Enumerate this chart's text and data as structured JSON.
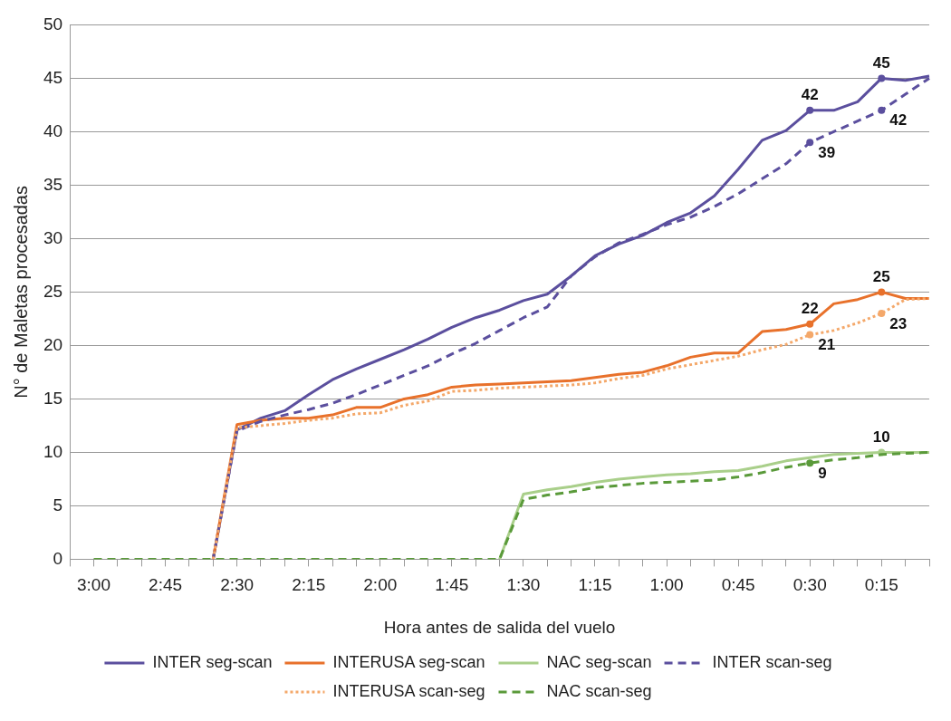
{
  "chart_data": {
    "type": "line",
    "xlabel": "Hora antes de salida del vuelo",
    "ylabel": "N° de Maletas procesadas",
    "categories": [
      null,
      "3:00",
      null,
      null,
      "2:45",
      null,
      null,
      "2:30",
      null,
      null,
      "2:15",
      null,
      null,
      "2:00",
      null,
      null,
      "1:45",
      null,
      null,
      "1:30",
      null,
      null,
      "1:15",
      null,
      null,
      "1:00",
      null,
      null,
      "0:45",
      null,
      null,
      "0:30",
      null,
      null,
      "0:15",
      null,
      null
    ],
    "ylim": [
      0,
      50
    ],
    "yticks": [
      0,
      5,
      10,
      15,
      20,
      25,
      30,
      35,
      40,
      45,
      50
    ],
    "grid": "y",
    "legend": "bottom",
    "series": [
      {
        "name": "INTER seg-scan",
        "color": "#5b4f9e",
        "line_style": "solid",
        "values": [
          null,
          null,
          null,
          null,
          null,
          null,
          0,
          12.1,
          13.2,
          13.9,
          15.4,
          16.8,
          17.8,
          18.7,
          19.6,
          20.6,
          21.7,
          22.6,
          23.3,
          24.2,
          24.8,
          26.5,
          28.4,
          29.5,
          30.3,
          31.5,
          32.4,
          34,
          36.5,
          39.2,
          40.1,
          42,
          42,
          42.8,
          45,
          44.8,
          45.2
        ],
        "value_labels": [
          null,
          null,
          null,
          null,
          null,
          null,
          null,
          null,
          null,
          null,
          null,
          null,
          null,
          null,
          null,
          null,
          null,
          null,
          null,
          null,
          null,
          null,
          null,
          null,
          null,
          null,
          null,
          null,
          null,
          null,
          null,
          "42",
          null,
          null,
          "45",
          null,
          null
        ]
      },
      {
        "name": "INTERUSA seg-scan",
        "color": "#e8712b",
        "line_style": "solid",
        "values": [
          null,
          null,
          null,
          null,
          null,
          null,
          0,
          12.6,
          13,
          13.2,
          13.2,
          13.5,
          14.2,
          14.2,
          15,
          15.4,
          16.1,
          16.3,
          16.4,
          16.5,
          16.6,
          16.7,
          17,
          17.3,
          17.5,
          18.1,
          18.9,
          19.3,
          19.3,
          21.3,
          21.5,
          22,
          23.9,
          24.3,
          25,
          24.4,
          24.4
        ],
        "value_labels": [
          null,
          null,
          null,
          null,
          null,
          null,
          null,
          null,
          null,
          null,
          null,
          null,
          null,
          null,
          null,
          null,
          null,
          null,
          null,
          null,
          null,
          null,
          null,
          null,
          null,
          null,
          null,
          null,
          null,
          null,
          null,
          "22",
          null,
          null,
          "25",
          null,
          null
        ]
      },
      {
        "name": "NAC seg-scan",
        "color": "#a9cf8a",
        "line_style": "solid",
        "values": [
          null,
          null,
          null,
          null,
          null,
          null,
          null,
          null,
          null,
          null,
          null,
          null,
          null,
          null,
          null,
          null,
          null,
          null,
          0,
          6.1,
          6.5,
          6.8,
          7.2,
          7.5,
          7.7,
          7.9,
          8,
          8.2,
          8.3,
          8.7,
          9.2,
          9.5,
          9.8,
          9.9,
          10,
          10,
          10
        ],
        "value_labels": [
          null,
          null,
          null,
          null,
          null,
          null,
          null,
          null,
          null,
          null,
          null,
          null,
          null,
          null,
          null,
          null,
          null,
          null,
          null,
          null,
          null,
          null,
          null,
          null,
          null,
          null,
          null,
          null,
          null,
          null,
          null,
          null,
          null,
          null,
          "10",
          null,
          null
        ]
      },
      {
        "name": "INTER scan-seg",
        "color": "#5b4f9e",
        "line_style": "dashed",
        "values": [
          null,
          null,
          null,
          null,
          null,
          null,
          0,
          12,
          12.9,
          13.5,
          14,
          14.6,
          15.4,
          16.3,
          17.2,
          18.1,
          19.2,
          20.2,
          21.4,
          22.6,
          23.6,
          26.5,
          28.3,
          29.6,
          30.4,
          31.3,
          32,
          33,
          34.2,
          35.6,
          37,
          39,
          40,
          41,
          42,
          43.5,
          45
        ],
        "value_labels": [
          null,
          null,
          null,
          null,
          null,
          null,
          null,
          null,
          null,
          null,
          null,
          null,
          null,
          null,
          null,
          null,
          null,
          null,
          null,
          null,
          null,
          null,
          null,
          null,
          null,
          null,
          null,
          null,
          null,
          null,
          null,
          "39",
          null,
          null,
          "42",
          null,
          null
        ]
      },
      {
        "name": "INTERUSA scan-seg",
        "color": "#f4a86a",
        "line_style": "dotted",
        "values": [
          null,
          null,
          null,
          null,
          null,
          null,
          0,
          12.3,
          12.5,
          12.7,
          13,
          13.2,
          13.6,
          13.7,
          14.4,
          14.8,
          15.7,
          15.8,
          16,
          16.1,
          16.2,
          16.3,
          16.5,
          16.9,
          17.2,
          17.8,
          18.2,
          18.6,
          19,
          19.6,
          20.1,
          21,
          21.4,
          22.1,
          23,
          24.3,
          24.4
        ],
        "value_labels": [
          null,
          null,
          null,
          null,
          null,
          null,
          null,
          null,
          null,
          null,
          null,
          null,
          null,
          null,
          null,
          null,
          null,
          null,
          null,
          null,
          null,
          null,
          null,
          null,
          null,
          null,
          null,
          null,
          null,
          null,
          null,
          "21",
          null,
          null,
          "23",
          null,
          null
        ]
      },
      {
        "name": "NAC scan-seg",
        "color": "#5a9a3a",
        "line_style": "dashed",
        "values": [
          null,
          0,
          0,
          0,
          0,
          0,
          0,
          0,
          0,
          0,
          0,
          0,
          0,
          0,
          0,
          0,
          0,
          0,
          0,
          5.6,
          6,
          6.3,
          6.7,
          6.9,
          7.1,
          7.2,
          7.3,
          7.4,
          7.7,
          8.1,
          8.6,
          9,
          9.3,
          9.5,
          9.8,
          9.9,
          10
        ],
        "value_labels": [
          null,
          null,
          null,
          null,
          null,
          null,
          null,
          null,
          null,
          null,
          null,
          null,
          null,
          null,
          null,
          null,
          null,
          null,
          null,
          null,
          null,
          null,
          null,
          null,
          null,
          null,
          null,
          null,
          null,
          null,
          null,
          "9",
          null,
          null,
          null,
          null,
          null
        ]
      }
    ]
  }
}
